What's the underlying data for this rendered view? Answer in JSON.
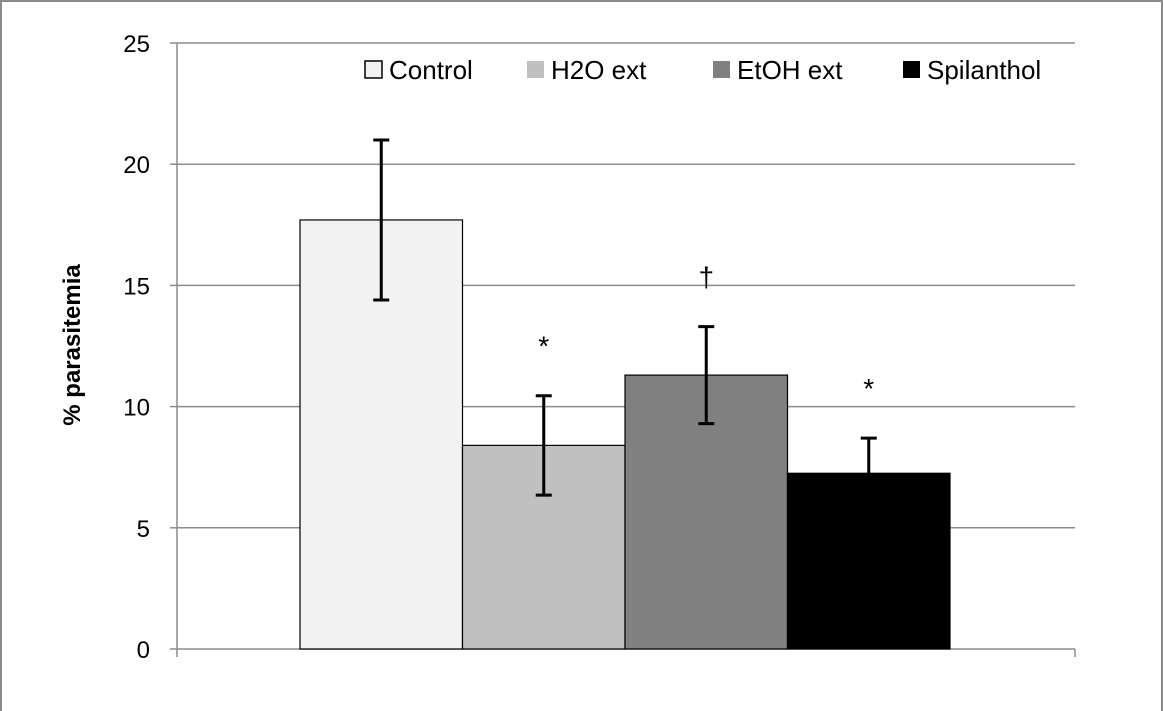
{
  "chart_data": {
    "type": "bar",
    "title": "",
    "xlabel": "",
    "ylabel": "% parasitemia",
    "ylim": [
      0,
      25
    ],
    "yticks": [
      0,
      5,
      10,
      15,
      20,
      25
    ],
    "grid": true,
    "legend_position": "top",
    "series": [
      {
        "name": "Control",
        "value": 17.7,
        "error": 3.3,
        "annotation": "",
        "color": "#f2f2f2"
      },
      {
        "name": "H2O ext",
        "value": 8.4,
        "error": 2.05,
        "annotation": "*",
        "color": "#c0c0c0"
      },
      {
        "name": "EtOH ext",
        "value": 11.3,
        "error": 2.0,
        "annotation": "†",
        "color": "#808080"
      },
      {
        "name": "Spilanthol",
        "value": 7.25,
        "error": 1.45,
        "annotation": "*",
        "color": "#000000"
      }
    ]
  }
}
